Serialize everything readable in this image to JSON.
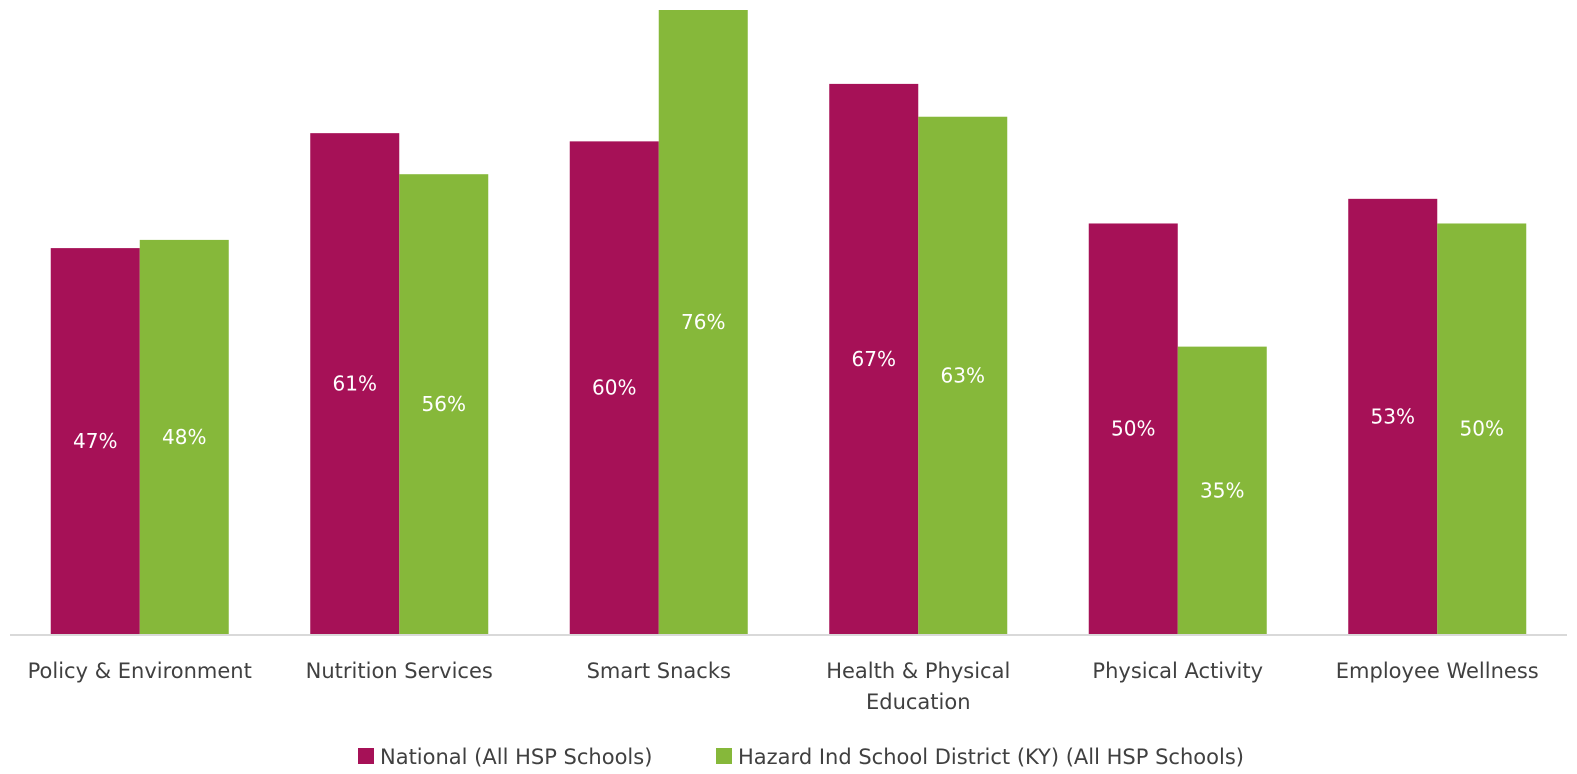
{
  "chart_data": {
    "type": "bar",
    "categories": [
      [
        "Policy & Environment"
      ],
      [
        "Nutrition Services"
      ],
      [
        "Smart Snacks"
      ],
      [
        "Health & Physical",
        "Education"
      ],
      [
        "Physical Activity"
      ],
      [
        "Employee Wellness"
      ]
    ],
    "series": [
      {
        "name": "National (All HSP Schools)",
        "color": "#A61157",
        "values": [
          47,
          61,
          60,
          67,
          50,
          53
        ],
        "labels": [
          "47%",
          "61%",
          "60%",
          "67%",
          "50%",
          "53%"
        ]
      },
      {
        "name": "Hazard Ind School District (KY) (All HSP Schools)",
        "color": "#86B83A",
        "values": [
          48,
          56,
          76,
          63,
          35,
          50
        ],
        "labels": [
          "48%",
          "56%",
          "76%",
          "63%",
          "35%",
          "50%"
        ]
      }
    ],
    "ylim": [
      0,
      76
    ],
    "grid": false,
    "legend_position": "bottom",
    "axis_color": "#D9D9D9"
  }
}
